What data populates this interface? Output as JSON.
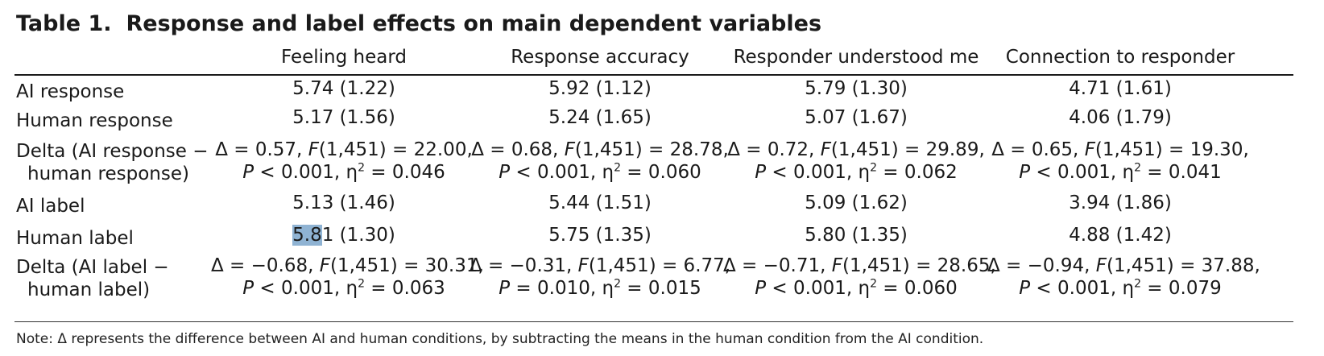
{
  "title": {
    "number": "Table 1.",
    "text": "Response and label effects on main dependent variables"
  },
  "columns": [
    "Feeling heard",
    "Response accuracy",
    "Responder understood me",
    "Connection to responder"
  ],
  "rows": [
    {
      "label": [
        "AI response"
      ],
      "cells": [
        [
          "5.74 (1.22)"
        ],
        [
          "5.92 (1.12)"
        ],
        [
          "5.79 (1.30)"
        ],
        [
          "4.71 (1.61)"
        ]
      ]
    },
    {
      "label": [
        "Human response"
      ],
      "cells": [
        [
          "5.17 (1.56)"
        ],
        [
          "5.24 (1.65)"
        ],
        [
          "5.07 (1.67)"
        ],
        [
          "4.06 (1.79)"
        ]
      ]
    },
    {
      "label": [
        "Delta (AI response −",
        "human response)"
      ],
      "stats": [
        {
          "delta": "0.57",
          "F": "22.00",
          "P": "P < 0.001",
          "eta": "0.046"
        },
        {
          "delta": "0.68",
          "F": "28.78",
          "P": "P < 0.001",
          "eta": "0.060"
        },
        {
          "delta": "0.72",
          "F": "29.89",
          "P": "P < 0.001",
          "eta": "0.062"
        },
        {
          "delta": "0.65",
          "F": "19.30",
          "P": "P < 0.001",
          "eta": "0.041"
        }
      ]
    },
    {
      "label": [
        "AI label"
      ],
      "cells": [
        [
          "5.13 (1.46)"
        ],
        [
          "5.44 (1.51)"
        ],
        [
          "5.09 (1.62)"
        ],
        [
          "3.94 (1.86)"
        ]
      ]
    },
    {
      "label": [
        "Human label"
      ],
      "cells": [
        [
          "5.81 (1.30)"
        ],
        [
          "5.75 (1.35)"
        ],
        [
          "5.80 (1.35)"
        ],
        [
          "4.88 (1.42)"
        ]
      ]
    },
    {
      "label": [
        "Delta (AI label −",
        "human label)"
      ],
      "stats": [
        {
          "delta": "−0.68",
          "F": "30.31",
          "P": "P < 0.001",
          "eta": "0.063"
        },
        {
          "delta": "−0.31",
          "F": "6.77",
          "P": "P = 0.010",
          "eta": "0.015"
        },
        {
          "delta": "−0.71",
          "F": "28.65",
          "P": "P < 0.001",
          "eta": "0.060"
        },
        {
          "delta": "−0.94",
          "F": "37.88",
          "P": "P < 0.001",
          "eta": "0.079"
        }
      ]
    }
  ],
  "df": "(1,451)",
  "selection": {
    "row": 4,
    "col": 0,
    "highlighted_text": "5.8"
  },
  "note": "Note: Δ represents the difference between AI and human conditions, by subtracting the means in the human condition from the AI condition.",
  "colors": {
    "text": "#1a1a1a",
    "selection": "#8fb3d3"
  }
}
